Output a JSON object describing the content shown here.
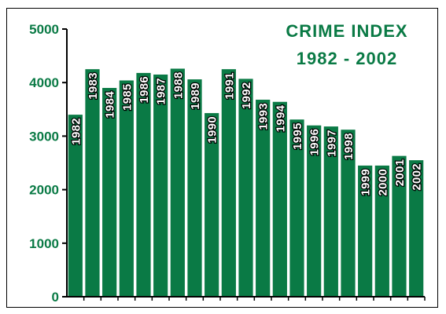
{
  "chart_data": {
    "type": "bar",
    "title": "CRIME INDEX",
    "subtitle": "1982 - 2002",
    "categories": [
      "1982",
      "1983",
      "1984",
      "1985",
      "1986",
      "1987",
      "1988",
      "1989",
      "1990",
      "1991",
      "1992",
      "1993",
      "1994",
      "1995",
      "1996",
      "1997",
      "1998",
      "1999",
      "2000",
      "2001",
      "2002"
    ],
    "values": [
      3400,
      4250,
      3900,
      4040,
      4180,
      4150,
      4260,
      4060,
      3430,
      4250,
      4070,
      3680,
      3640,
      3310,
      3200,
      3180,
      3120,
      2450,
      2450,
      2630,
      2550
    ],
    "ylim": [
      0,
      5000
    ],
    "yticks": [
      0,
      1000,
      2000,
      3000,
      4000,
      5000
    ],
    "xlabel": "",
    "ylabel": "",
    "grid": false,
    "colors": {
      "bar": "#0a7a45",
      "text": "#0a7a45",
      "label_fill": "#ffffff",
      "label_stroke": "#000000"
    }
  }
}
